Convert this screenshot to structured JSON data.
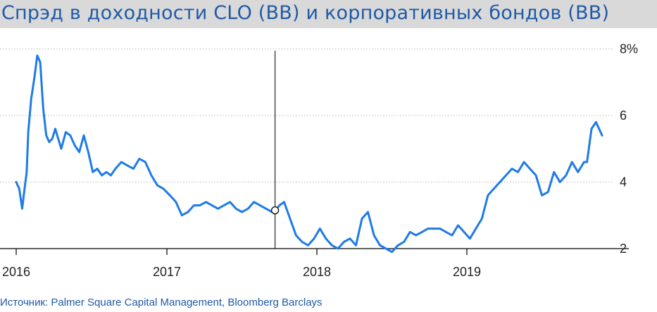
{
  "title": "Спрэд в доходности CLO (BB) и корпоративных бондов (BB)",
  "source": "Источник: Palmer Square Capital Management, Bloomberg Barclays",
  "colors": {
    "line": "#1e7be6",
    "title_bar": "#d9d9d9",
    "title_text": "#1f5aa6",
    "grid": "#b8b8b8",
    "axis": "#000000"
  },
  "chart_data": {
    "type": "line",
    "title": "Спрэд в доходности CLO (BB) и корпоративных бондов (BB)",
    "xlabel": "",
    "ylabel": "",
    "x_ticks": [
      "2016",
      "2017",
      "2018",
      "2019"
    ],
    "y_ticks": [
      "2",
      "4",
      "6",
      "8%"
    ],
    "y_tick_values": [
      2,
      4,
      6,
      8
    ],
    "ylim": [
      1.6,
      8.2
    ],
    "xlim": [
      2016.0,
      2020.1
    ],
    "grid": true,
    "legend": "none",
    "marker": {
      "x": 2017.72,
      "y": 3.15
    },
    "series": [
      {
        "x": [
          2016.0,
          2016.02,
          2016.04,
          2016.05,
          2016.07,
          2016.08,
          2016.1,
          2016.12,
          2016.14,
          2016.16,
          2016.18,
          2016.2,
          2016.22,
          2016.24,
          2016.26,
          2016.28,
          2016.3,
          2016.33,
          2016.36,
          2016.39,
          2016.42,
          2016.45,
          2016.48,
          2016.51,
          2016.54,
          2016.57,
          2016.6,
          2016.63,
          2016.66,
          2016.7,
          2016.74,
          2016.78,
          2016.82,
          2016.86,
          2016.9,
          2016.94,
          2016.98,
          2017.02,
          2017.06,
          2017.1,
          2017.14,
          2017.18,
          2017.22,
          2017.26,
          2017.3,
          2017.34,
          2017.38,
          2017.42,
          2017.46,
          2017.5,
          2017.54,
          2017.58,
          2017.62,
          2017.66,
          2017.7,
          2017.72,
          2017.75,
          2017.78,
          2017.82,
          2017.86,
          2017.9,
          2017.94,
          2017.98,
          2018.02,
          2018.06,
          2018.1,
          2018.14,
          2018.18,
          2018.22,
          2018.26,
          2018.3,
          2018.34,
          2018.38,
          2018.42,
          2018.46,
          2018.5,
          2018.54,
          2018.58,
          2018.62,
          2018.66,
          2018.7,
          2018.74,
          2018.78,
          2018.82,
          2018.86,
          2018.9,
          2018.94,
          2018.98,
          2019.02,
          2019.06,
          2019.1,
          2019.14,
          2019.18,
          2019.22,
          2019.26,
          2019.3,
          2019.34,
          2019.38,
          2019.42,
          2019.46,
          2019.5,
          2019.54,
          2019.58,
          2019.62,
          2019.66,
          2019.7,
          2019.74,
          2019.78,
          2019.8,
          2019.83,
          2019.86,
          2019.88,
          2019.9
        ],
        "values": [
          4.0,
          3.8,
          3.2,
          3.6,
          4.3,
          5.5,
          6.5,
          7.1,
          7.8,
          7.6,
          6.2,
          5.4,
          5.2,
          5.3,
          5.6,
          5.3,
          5.0,
          5.5,
          5.4,
          5.1,
          4.9,
          5.4,
          4.9,
          4.3,
          4.4,
          4.2,
          4.3,
          4.2,
          4.4,
          4.6,
          4.5,
          4.4,
          4.7,
          4.6,
          4.2,
          3.9,
          3.8,
          3.6,
          3.4,
          3.0,
          3.1,
          3.3,
          3.3,
          3.4,
          3.3,
          3.2,
          3.3,
          3.4,
          3.2,
          3.1,
          3.2,
          3.4,
          3.3,
          3.2,
          3.1,
          3.15,
          3.3,
          3.4,
          2.9,
          2.4,
          2.2,
          2.1,
          2.3,
          2.6,
          2.3,
          2.1,
          2.0,
          2.2,
          2.3,
          2.1,
          2.9,
          3.1,
          2.4,
          2.1,
          2.0,
          1.9,
          2.1,
          2.2,
          2.5,
          2.4,
          2.5,
          2.6,
          2.6,
          2.6,
          2.5,
          2.4,
          2.7,
          2.5,
          2.3,
          2.6,
          2.9,
          3.6,
          3.8,
          4.0,
          4.2,
          4.4,
          4.3,
          4.6,
          4.4,
          4.2,
          3.6,
          3.7,
          4.3,
          4.0,
          4.2,
          4.6,
          4.3,
          4.6,
          4.6,
          5.6,
          5.8,
          5.6,
          5.4
        ]
      }
    ]
  }
}
